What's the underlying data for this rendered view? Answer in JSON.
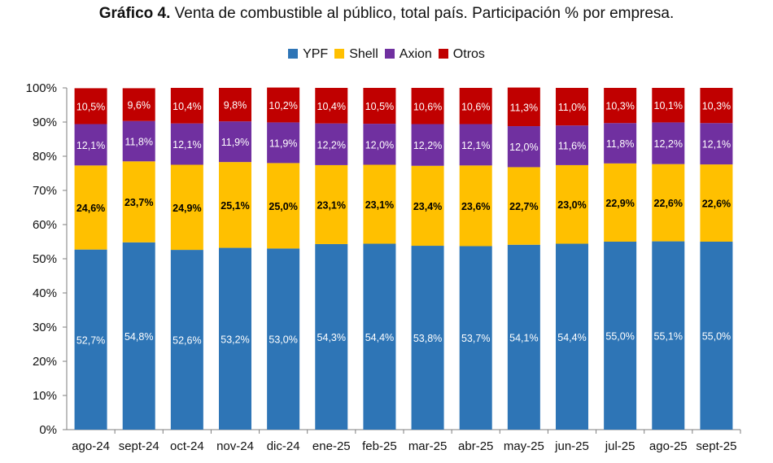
{
  "chart_data": {
    "type": "bar",
    "stacked": true,
    "title_prefix": "Gráfico 4.",
    "title_text": "Venta de combustible al público, total país. Participación % por empresa.",
    "categories": [
      "ago-24",
      "sept-24",
      "oct-24",
      "nov-24",
      "dic-24",
      "ene-25",
      "feb-25",
      "mar-25",
      "abr-25",
      "may-25",
      "jun-25",
      "jul-25",
      "ago-25",
      "sept-25"
    ],
    "series": [
      {
        "name": "YPF",
        "color": "#2E75B6",
        "label_color": "#ffffff",
        "values": [
          52.7,
          54.8,
          52.6,
          53.2,
          53.0,
          54.3,
          54.4,
          53.8,
          53.7,
          54.1,
          54.4,
          55.0,
          55.1,
          55.0
        ],
        "labels": [
          "52,7%",
          "54,8%",
          "52,6%",
          "53,2%",
          "53,0%",
          "54,3%",
          "54,4%",
          "53,8%",
          "53,7%",
          "54,1%",
          "54,4%",
          "55,0%",
          "55,1%",
          "55,0%"
        ]
      },
      {
        "name": "Shell",
        "color": "#FFC000",
        "label_color": "#000000",
        "values": [
          24.6,
          23.7,
          24.9,
          25.1,
          25.0,
          23.1,
          23.1,
          23.4,
          23.6,
          22.7,
          23.0,
          22.9,
          22.6,
          22.6
        ],
        "labels": [
          "24,6%",
          "23,7%",
          "24,9%",
          "25,1%",
          "25,0%",
          "23,1%",
          "23,1%",
          "23,4%",
          "23,6%",
          "22,7%",
          "23,0%",
          "22,9%",
          "22,6%",
          "22,6%"
        ]
      },
      {
        "name": "Axion",
        "color": "#7030A0",
        "label_color": "#ffffff",
        "values": [
          12.1,
          11.8,
          12.1,
          11.9,
          11.9,
          12.2,
          12.0,
          12.2,
          12.1,
          12.0,
          11.6,
          11.8,
          12.2,
          12.1
        ],
        "labels": [
          "12,1%",
          "11,8%",
          "12,1%",
          "11,9%",
          "11,9%",
          "12,2%",
          "12,0%",
          "12,2%",
          "12,1%",
          "12,0%",
          "11,6%",
          "11,8%",
          "12,2%",
          "12,1%"
        ]
      },
      {
        "name": "Otros",
        "color": "#C00000",
        "label_color": "#ffffff",
        "values": [
          10.5,
          9.6,
          10.4,
          9.8,
          10.2,
          10.4,
          10.5,
          10.6,
          10.6,
          11.3,
          11.0,
          10.3,
          10.1,
          10.3
        ],
        "labels": [
          "10,5%",
          "9,6%",
          "10,4%",
          "9,8%",
          "10,2%",
          "10,4%",
          "10,5%",
          "10,6%",
          "10,6%",
          "11,3%",
          "11,0%",
          "10,3%",
          "10,1%",
          "10,3%"
        ]
      }
    ],
    "y_ticks": [
      "0%",
      "10%",
      "20%",
      "30%",
      "40%",
      "50%",
      "60%",
      "70%",
      "80%",
      "90%",
      "100%"
    ],
    "ylim": [
      0,
      100
    ],
    "legend_position": "top-center",
    "grid": false
  }
}
